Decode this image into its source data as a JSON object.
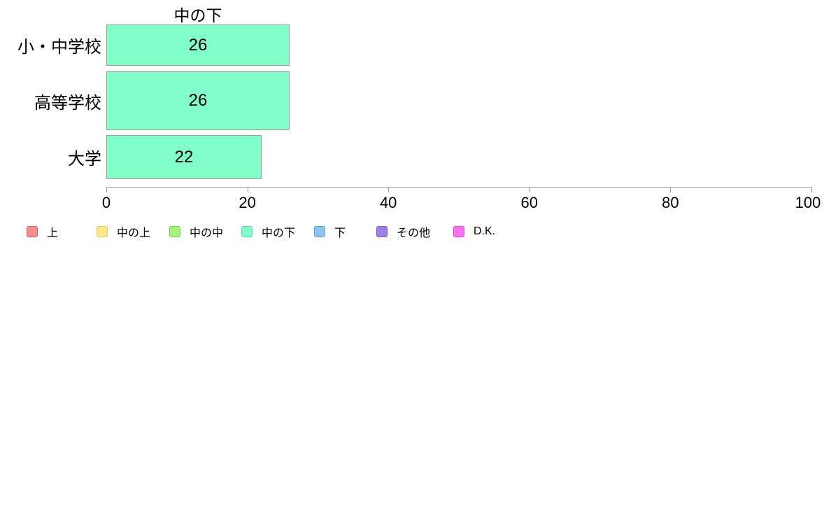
{
  "chart_data": {
    "type": "bar",
    "orientation": "horizontal",
    "title": "中の下",
    "categories": [
      "小・中学校",
      "高等学校",
      "大学"
    ],
    "values": [
      26,
      26,
      22
    ],
    "xlabel": "",
    "ylabel": "",
    "xlim": [
      0,
      100
    ],
    "x_ticks": [
      0,
      20,
      40,
      60,
      80,
      100
    ],
    "grid": false,
    "legend_position": "bottom-left",
    "bar_fill": "#81FFC9",
    "bar_border": "#9E9E9E",
    "axis_color": "#9A9A9A",
    "text_color": "#000000"
  },
  "legend": {
    "items": [
      {
        "label": "上",
        "fill": "#F38E8E",
        "border": "#E25757"
      },
      {
        "label": "中の上",
        "fill": "#FAE88C",
        "border": "#E7CB52"
      },
      {
        "label": "中の中",
        "fill": "#A5F27D",
        "border": "#6ED13E"
      },
      {
        "label": "中の下",
        "fill": "#81FFC9",
        "border": "#49DCA4"
      },
      {
        "label": "下",
        "fill": "#8DC7F1",
        "border": "#569FDA"
      },
      {
        "label": "その他",
        "fill": "#9D81E9",
        "border": "#7257D2"
      },
      {
        "label": "D.K.",
        "fill": "#F973F1",
        "border": "#E041D6"
      }
    ]
  }
}
